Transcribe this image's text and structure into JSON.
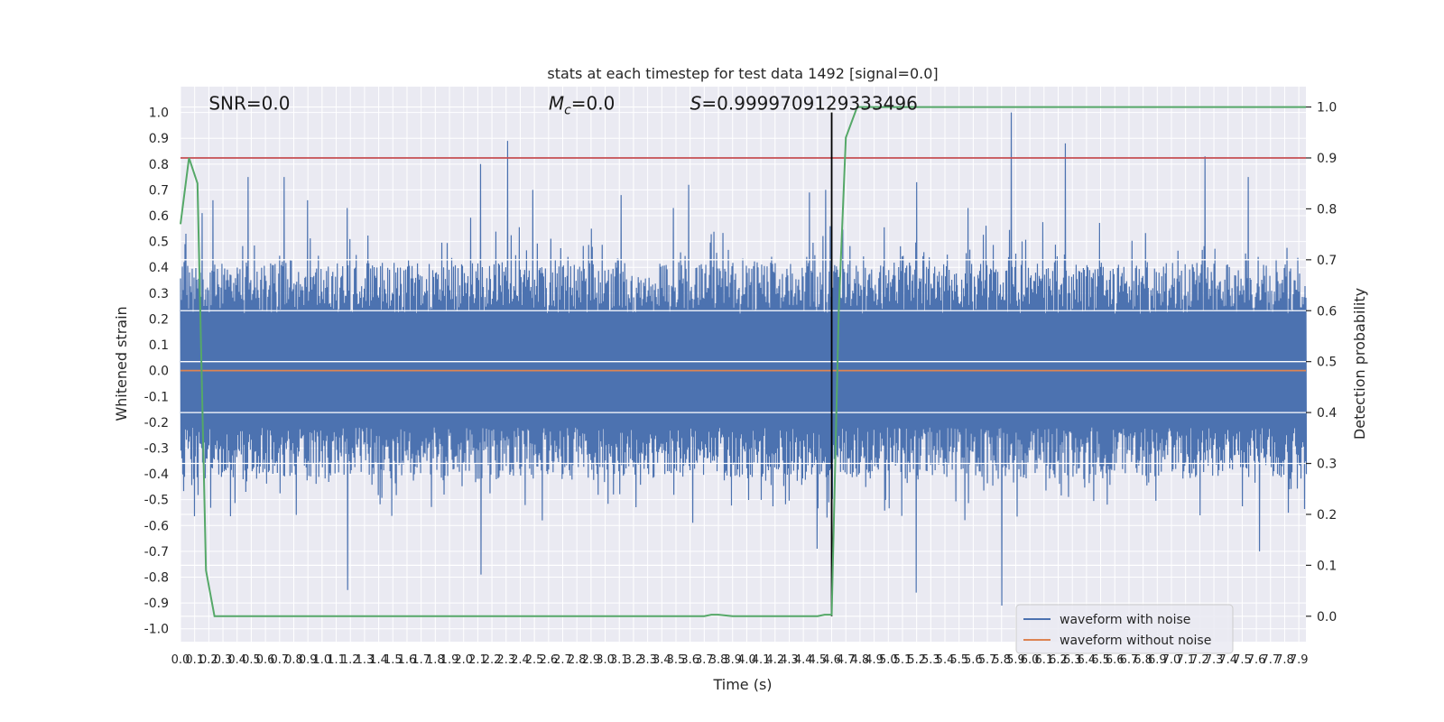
{
  "chart_data": {
    "type": "line",
    "title": "stats at each timestep for test data 1492 [signal=0.0]",
    "xlabel": "Time (s)",
    "ylabel_left": "Whitened strain",
    "ylabel_right": "Detection probability",
    "xlim": [
      0.0,
      7.95
    ],
    "ylim_left": [
      -1.05,
      1.1
    ],
    "ylim_right": [
      -0.05,
      1.04
    ],
    "x_ticks": [
      "0.0",
      "0.1",
      "0.2",
      "0.3",
      "0.4",
      "0.5",
      "0.6",
      "0.7",
      "0.8",
      "0.9",
      "1.0",
      "1.1",
      "1.2",
      "1.3",
      "1.4",
      "1.5",
      "1.6",
      "1.7",
      "1.8",
      "1.9",
      "2.0",
      "2.1",
      "2.2",
      "2.3",
      "2.4",
      "2.5",
      "2.6",
      "2.7",
      "2.8",
      "2.9",
      "3.0",
      "3.1",
      "3.2",
      "3.3",
      "3.4",
      "3.5",
      "3.6",
      "3.7",
      "3.8",
      "3.9",
      "4.0",
      "4.1",
      "4.2",
      "4.3",
      "4.4",
      "4.5",
      "4.6",
      "4.7",
      "4.8",
      "4.9",
      "5.0",
      "5.1",
      "5.2",
      "5.3",
      "5.4",
      "5.5",
      "5.6",
      "5.7",
      "5.8",
      "5.9",
      "6.0",
      "6.1",
      "6.2",
      "6.3",
      "6.4",
      "6.5",
      "6.6",
      "6.7",
      "6.8",
      "6.9",
      "7.0",
      "7.1",
      "7.2",
      "7.3",
      "7.4",
      "7.5",
      "7.6",
      "7.7",
      "7.8",
      "7.9"
    ],
    "y_ticks_left": [
      "-1.0",
      "-0.9",
      "-0.8",
      "-0.7",
      "-0.6",
      "-0.5",
      "-0.4",
      "-0.3",
      "-0.2",
      "-0.1",
      "0.0",
      "0.1",
      "0.2",
      "0.3",
      "0.4",
      "0.5",
      "0.6",
      "0.7",
      "0.8",
      "0.9",
      "1.0"
    ],
    "y_ticks_right": [
      "0.0",
      "0.1",
      "0.2",
      "0.3",
      "0.4",
      "0.5",
      "0.6",
      "0.7",
      "0.8",
      "0.9",
      "1.0"
    ],
    "annotations": [
      {
        "text": "SNR=0.0",
        "x": 0.2,
        "y": 1.01
      },
      {
        "text": "M",
        "sub": "c",
        "suffix": "=0.0",
        "x": 2.6,
        "y": 1.01
      },
      {
        "text": "S",
        "suffix": "=0.9999709129333496",
        "x": 3.6,
        "y": 1.01
      }
    ],
    "threshold": {
      "y_right": 0.9,
      "color": "#c44e52"
    },
    "detection_time": {
      "x": 4.6,
      "color": "#000000"
    },
    "series": [
      {
        "name": "waveform with noise",
        "color": "#4c72b0",
        "axis": "left",
        "style": "noise",
        "peaks": [
          {
            "x": 0.04,
            "y": 0.53
          },
          {
            "x": 0.15,
            "y": 0.61
          },
          {
            "x": 0.23,
            "y": 0.66
          },
          {
            "x": 0.48,
            "y": 0.75
          },
          {
            "x": 0.73,
            "y": 0.75
          },
          {
            "x": 0.9,
            "y": 0.66
          },
          {
            "x": 1.18,
            "y": 0.63
          },
          {
            "x": 1.18,
            "y": -0.85
          },
          {
            "x": 2.12,
            "y": 0.8
          },
          {
            "x": 2.12,
            "y": -0.79
          },
          {
            "x": 2.31,
            "y": 0.89
          },
          {
            "x": 2.49,
            "y": 0.7
          },
          {
            "x": 3.11,
            "y": 0.68
          },
          {
            "x": 3.48,
            "y": 0.63
          },
          {
            "x": 3.59,
            "y": 0.72
          },
          {
            "x": 4.44,
            "y": 0.69
          },
          {
            "x": 4.5,
            "y": -0.69
          },
          {
            "x": 4.56,
            "y": 0.7
          },
          {
            "x": 5.2,
            "y": 0.73
          },
          {
            "x": 5.2,
            "y": -0.86
          },
          {
            "x": 5.56,
            "y": 0.63
          },
          {
            "x": 5.8,
            "y": -0.91
          },
          {
            "x": 5.87,
            "y": 1.0
          },
          {
            "x": 6.25,
            "y": 0.88
          },
          {
            "x": 7.24,
            "y": 0.83
          },
          {
            "x": 7.54,
            "y": 0.75
          },
          {
            "x": 7.62,
            "y": -0.7
          }
        ]
      },
      {
        "name": "waveform without noise",
        "color": "#dd8452",
        "axis": "left",
        "x": [
          0.0,
          7.95
        ],
        "y": [
          0.0,
          0.0
        ]
      },
      {
        "name": "",
        "color": "#55a868",
        "axis": "right",
        "x": [
          0.0,
          0.06,
          0.12,
          0.18,
          0.24,
          0.5,
          1.0,
          2.0,
          3.0,
          3.5,
          3.7,
          3.75,
          3.8,
          3.9,
          4.0,
          4.2,
          4.4,
          4.5,
          4.55,
          4.6,
          4.65,
          4.7,
          4.78,
          4.8,
          5.0,
          6.0,
          7.0,
          7.95
        ],
        "y": [
          0.77,
          0.9,
          0.85,
          0.09,
          0.0,
          0.0,
          0.0,
          0.0,
          0.0,
          0.0,
          0.0,
          0.003,
          0.003,
          0.0,
          0.0,
          0.0,
          0.0,
          0.0,
          0.003,
          0.003,
          0.6,
          0.94,
          1.0,
          1.0,
          1.0,
          1.0,
          1.0,
          1.0
        ]
      }
    ],
    "legend": {
      "position": "lower-right",
      "entries": [
        {
          "label": "waveform with noise",
          "color": "#4c72b0"
        },
        {
          "label": "waveform without noise",
          "color": "#dd8452"
        }
      ]
    },
    "style": {
      "plot_background": "#eaeaf2",
      "grid_color": "#ffffff",
      "grid": true
    }
  }
}
